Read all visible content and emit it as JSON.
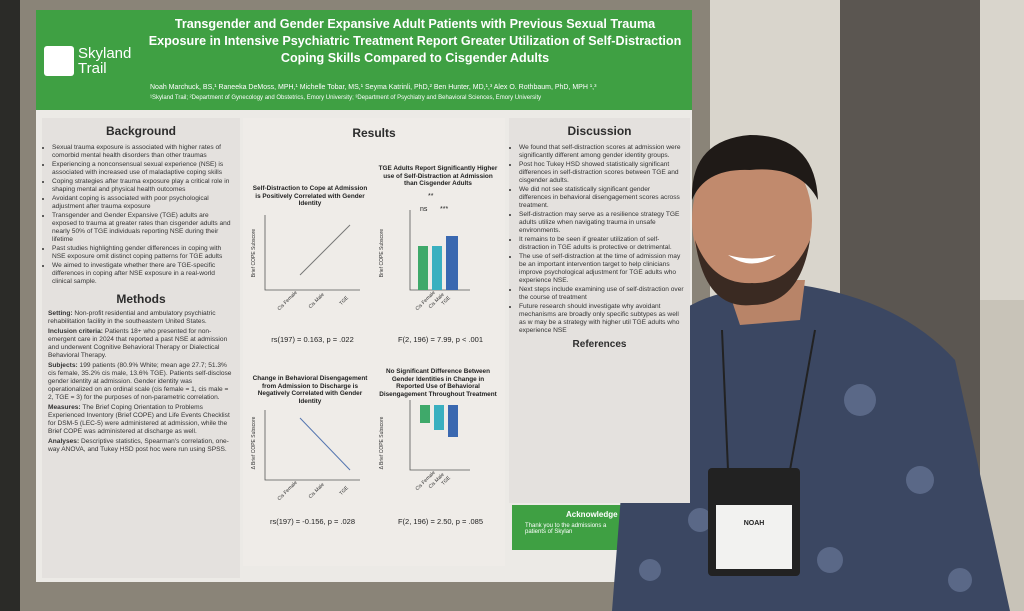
{
  "poster": {
    "logo": "Skyland Trail",
    "title": "Transgender and Gender Expansive Adult Patients with Previous Sexual Trauma Exposure in Intensive Psychiatric Treatment Report Greater Utilization of Self-Distraction Coping Skills Compared to Cisgender Adults",
    "authors": "Noah Marchuck, BS,¹ Raneeka DeMoss, MPH,¹ Michelle Tobar, MS,¹ Seyma Katrinli, PhD,² Ben Hunter, MD,¹,³ Alex O. Rothbaum, PhD, MPH ¹,³",
    "affiliations": "¹Skyland Trail; ²Department of Gynecology and Obstetrics, Emory University; ³Department of Psychiatry and Behavioral Sciences, Emory University",
    "background": {
      "heading": "Background",
      "bullets": [
        "Sexual trauma exposure is associated with higher rates of comorbid mental health disorders than other traumas",
        "Experiencing a nonconsensual sexual experience (NSE) is associated with increased use of maladaptive coping skills",
        "Coping strategies after trauma exposure play a critical role in shaping mental and physical health outcomes",
        "Avoidant coping is associated with poor psychological adjustment after trauma exposure",
        "Transgender and Gender Expansive (TGE) adults are exposed to trauma at greater rates than cisgender adults and nearly 50% of TGE individuals reporting NSE during their lifetime",
        "Past studies highlighting gender differences in coping with NSE exposure omit distinct coping patterns for TGE adults",
        "We aimed to investigate whether there are TGE-specific differences in coping after NSE exposure in a real-world clinical sample."
      ]
    },
    "methods": {
      "heading": "Methods",
      "paragraphs": [
        {
          "label": "Setting:",
          "text": "Non-profit residential and ambulatory psychiatric rehabilitation facility in the southeastern United States."
        },
        {
          "label": "Inclusion criteria:",
          "text": "Patients 18+ who presented for non-emergent care in 2024 that reported a past NSE at admission and underwent Cognitive Behavioral Therapy or Dialectical Behavioral Therapy."
        },
        {
          "label": "Subjects:",
          "text": "199 patients (80.9% White; mean age 27.7; 51.3% cis female, 35.2% cis male, 13.6% TGE). Patients self-disclose gender identity at admission. Gender identity was operationalized on an ordinal scale (cis female = 1, cis male = 2, TGE = 3) for the purposes of non-parametric correlation."
        },
        {
          "label": "Measures:",
          "text": "The Brief Coping Orientation to Problems Experienced Inventory (Brief COPE) and Life Events Checklist for DSM-5 (LEC-5) were administered at admission, while the Brief COPE was administered at discharge as well."
        },
        {
          "label": "Analyses:",
          "text": "Descriptive statistics, Spearman's correlation, one-way ANOVA, and Tukey HSD post hoc were run using SPSS."
        }
      ]
    },
    "results": {
      "heading": "Results",
      "charts": [
        {
          "title": "Self-Distraction to Cope at Admission is Positively Correlated with Gender Identity",
          "ylabel": "Brief COPE Subscore",
          "categories": [
            "Cis Female",
            "Cis Male",
            "TGE"
          ],
          "stat": "rs(197) = 0.163, p = .022"
        },
        {
          "title": "TGE Adults Report Significantly Higher use of Self-Distraction at Admission than Cisgender Adults",
          "ylabel": "Brief COPE Subscore",
          "categories": [
            "Cis Female",
            "Cis Male",
            "TGE"
          ],
          "annotations": [
            "**",
            "ns",
            "***"
          ],
          "stat": "F(2, 196) = 7.99, p < .001"
        },
        {
          "title": "Change in Behavioral Disengagement from Admission to Discharge is Negatively Correlated with Gender Identity",
          "ylabel": "Δ Brief COPE Subscore",
          "categories": [
            "Cis Female",
            "Cis Male",
            "TGE"
          ],
          "stat": "rs(197) = -0.156, p = .028"
        },
        {
          "title": "No Significant Difference Between Gender Identities in Change in Reported Use of Behavioral Disengagement Throughout Treatment",
          "ylabel": "Δ Brief COPE Subscore",
          "categories": [
            "Cis Female",
            "Cis Male",
            "TGE"
          ],
          "stat": "F(2, 196) = 2.50, p = .085"
        }
      ]
    },
    "discussion": {
      "heading": "Discussion",
      "bullets": [
        "We found that self-distraction scores at admission were significantly different among gender identity groups.",
        "Post hoc Tukey HSD showed statistically significant differences in self-distraction scores between TGE and cisgender adults.",
        "We did not see statistically significant gender differences in behavioral disengagement scores across treatment.",
        "Self-distraction may serve as a resilience strategy TGE adults utilize when navigating trauma in unsafe environments.",
        "It remains to be seen if greater utilization of self-distraction in TGE adults is protective or detrimental.",
        "The use of self-distraction at the time of admission may be an important intervention target to help clinicians improve psychological adjustment for TGE adults who experience NSE.",
        "Next steps include examining use of self-distraction over the course of treatment",
        "Future research should investigate why avoidant mechanisms are broadly only specific subtypes as well as w may be a strategy with higher util TGE adults who experience NSE"
      ]
    },
    "references": {
      "heading": "References"
    },
    "acknowledgements": {
      "heading": "Acknowledge",
      "text": "Thank you to the admissions a patients of Skylan"
    },
    "badge": {
      "name": "NOAH"
    }
  }
}
